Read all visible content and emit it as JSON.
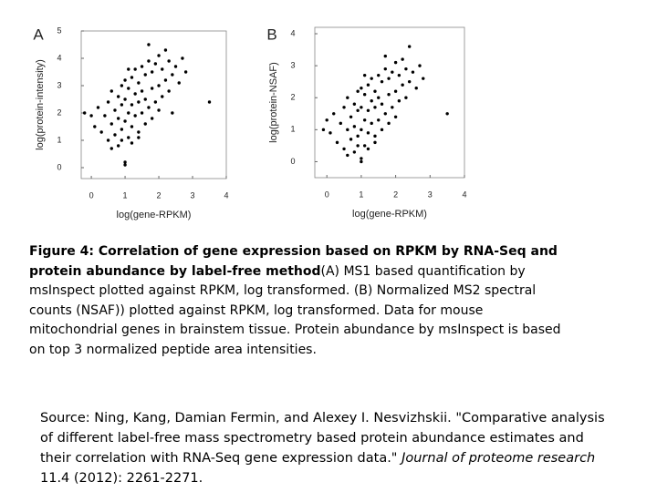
{
  "chart_data": [
    {
      "type": "scatter",
      "panel": "A",
      "x_label": "log(gene-RPKM)",
      "y_label": "log(protein-intensity)",
      "color": "#000000",
      "xlim": [
        -0.3,
        4
      ],
      "ylim": [
        -0.4,
        5
      ],
      "xticks": [
        0,
        1,
        2,
        3,
        4
      ],
      "yticks": [
        0,
        1,
        2,
        3,
        4,
        5
      ],
      "x": [
        0.1,
        0.2,
        0.3,
        0.4,
        0.5,
        0.5,
        0.6,
        0.6,
        0.7,
        0.7,
        0.8,
        0.8,
        0.8,
        0.9,
        0.9,
        0.9,
        1.0,
        1.0,
        1.0,
        1.0,
        1.1,
        1.1,
        1.1,
        1.2,
        1.2,
        1.2,
        1.2,
        1.3,
        1.3,
        1.3,
        1.4,
        1.4,
        1.4,
        1.5,
        1.5,
        1.5,
        1.6,
        1.6,
        1.6,
        1.7,
        1.7,
        1.8,
        1.8,
        1.8,
        1.9,
        1.9,
        2.0,
        2.0,
        2.0,
        2.1,
        2.1,
        2.2,
        2.2,
        2.3,
        2.3,
        2.4,
        2.5,
        2.6,
        2.7,
        2.8,
        3.5,
        -0.2,
        0.0,
        1.0,
        0.6,
        1.4,
        2.4,
        1.1,
        0.9,
        1.7
      ],
      "values": [
        1.5,
        2.2,
        1.3,
        1.9,
        1.0,
        2.4,
        1.6,
        2.8,
        1.2,
        2.1,
        0.8,
        1.8,
        2.6,
        1.4,
        2.3,
        3.0,
        0.2,
        1.7,
        2.5,
        3.2,
        1.1,
        2.0,
        2.9,
        1.5,
        2.3,
        3.3,
        0.9,
        1.9,
        2.7,
        3.6,
        1.3,
        2.4,
        3.1,
        2.0,
        2.8,
        3.7,
        1.6,
        2.5,
        3.4,
        2.2,
        3.9,
        1.8,
        2.9,
        3.5,
        2.4,
        3.8,
        2.1,
        3.0,
        4.1,
        2.6,
        3.6,
        3.2,
        4.3,
        2.8,
        3.9,
        3.4,
        3.7,
        3.1,
        4.0,
        3.5,
        2.4,
        2.0,
        1.9,
        0.1,
        0.7,
        1.1,
        2.0,
        3.6,
        1.0,
        4.5
      ]
    },
    {
      "type": "scatter",
      "panel": "B",
      "x_label": "log(gene-RPKM)",
      "y_label": "log(protein-NSAF)",
      "color": "#000000",
      "xlim": [
        -0.35,
        4
      ],
      "ylim": [
        -0.5,
        4.2
      ],
      "xticks": [
        0,
        1,
        2,
        3,
        4
      ],
      "yticks": [
        0,
        1,
        2,
        3,
        4
      ],
      "x": [
        0.1,
        0.2,
        0.3,
        0.4,
        0.5,
        0.5,
        0.6,
        0.6,
        0.7,
        0.7,
        0.8,
        0.8,
        0.8,
        0.9,
        0.9,
        0.9,
        1.0,
        1.0,
        1.0,
        1.0,
        1.1,
        1.1,
        1.1,
        1.2,
        1.2,
        1.2,
        1.2,
        1.3,
        1.3,
        1.3,
        1.4,
        1.4,
        1.4,
        1.5,
        1.5,
        1.5,
        1.6,
        1.6,
        1.6,
        1.7,
        1.7,
        1.8,
        1.8,
        1.8,
        1.9,
        1.9,
        2.0,
        2.0,
        2.0,
        2.1,
        2.1,
        2.2,
        2.2,
        2.3,
        2.3,
        2.4,
        2.5,
        2.6,
        2.7,
        2.8,
        3.5,
        -0.1,
        0.0,
        1.0,
        0.6,
        1.4,
        2.4,
        1.1,
        0.9,
        1.7
      ],
      "values": [
        0.9,
        1.5,
        0.6,
        1.2,
        0.4,
        1.7,
        1.0,
        2.0,
        0.7,
        1.4,
        0.3,
        1.1,
        1.8,
        0.8,
        1.6,
        2.2,
        0.0,
        1.0,
        1.7,
        2.3,
        0.5,
        1.3,
        2.1,
        0.9,
        1.6,
        2.4,
        0.4,
        1.2,
        1.9,
        2.6,
        0.8,
        1.7,
        2.2,
        1.3,
        2.0,
        2.7,
        1.0,
        1.8,
        2.5,
        1.5,
        2.9,
        1.2,
        2.1,
        2.6,
        1.7,
        2.8,
        1.4,
        2.2,
        3.1,
        1.9,
        2.7,
        2.4,
        3.2,
        2.0,
        2.9,
        2.5,
        2.8,
        2.3,
        3.0,
        2.6,
        1.5,
        1.0,
        1.3,
        0.1,
        0.2,
        0.6,
        3.6,
        2.7,
        0.5,
        3.3
      ]
    }
  ],
  "caption": {
    "bold": "Figure 4: Correlation of gene expression based on RPKM by RNA-Seq and protein abundance by label-free method",
    "text": "(A) MS1 based quantification by msInspect plotted against RPKM, log transformed. (B) Normalized MS2 spectral counts (NSAF)) plotted against RPKM, log transformed. Data for mouse mitochondrial genes in brainstem tissue. Protein abundance by msInspect is based on top 3 normalized peptide area intensities."
  },
  "source": {
    "before": "Source: Ning, Kang, Damian Fermin, and Alexey I. Nesvizhskii. \"Comparative analysis of different label-free mass spectrometry based protein abundance estimates and their correlation with RNA-Seq gene expression data.\" ",
    "journal": "Journal of proteome research",
    "after": " 11.4 (2012): 2261-2271."
  }
}
